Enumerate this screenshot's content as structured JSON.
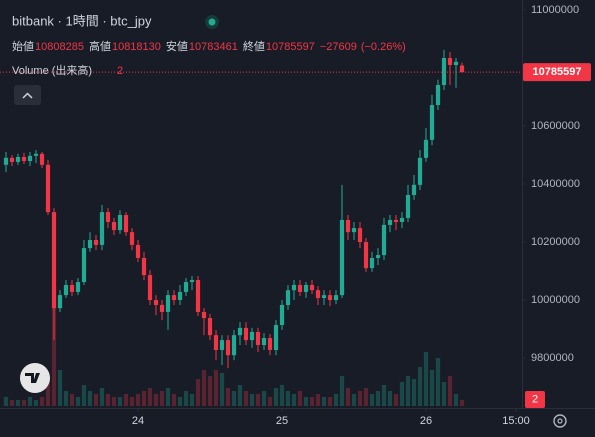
{
  "chart_data": {
    "type": "candlestick",
    "title": "bitbank · 1時間 · btc_jpy",
    "legend": [
      {
        "label": "始値",
        "value": 10808285
      },
      {
        "label": "高値",
        "value": 10818130
      },
      {
        "label": "安値",
        "value": 10783461
      },
      {
        "label": "終値",
        "value": 10785597
      }
    ],
    "change": {
      "value": -27609,
      "label": "−27609"
    },
    "change_pct": {
      "value": -0.26,
      "label": "(−0.26%)"
    },
    "volume_label": "Volume (出来高)",
    "volume_last": 2,
    "up_color": "#22ab94",
    "down_color": "#f23645",
    "open": [
      10466000,
      10490000,
      10476000,
      10493000,
      10479000,
      10497000,
      10504000,
      10466000,
      10303000,
      9972000,
      10017000,
      10052000,
      10028000,
      10062000,
      10179000,
      10207000,
      10190000,
      10303000,
      10269000,
      10241000,
      10293000,
      10234000,
      10190000,
      10145000,
      10086000,
      10000000,
      9983000,
      9959000,
      10017000,
      10000000,
      10028000,
      10062000,
      10069000,
      9959000,
      9938000,
      9879000,
      9828000,
      9862000,
      9810000,
      9879000,
      9904000,
      9862000,
      9890000,
      9845000,
      9869000,
      9828000,
      9914000,
      9983000,
      10034000,
      10052000,
      10028000,
      10052000,
      10034000,
      10007000,
      10017000,
      10000000,
      10017000,
      10276000,
      10234000,
      10248000,
      10200000,
      10110000,
      10145000,
      10155000,
      10259000,
      10276000,
      10269000,
      10283000,
      10362000,
      10397000,
      10490000,
      10552000,
      10672000,
      10741000,
      10834000,
      10810000,
      10808285
    ],
    "high": [
      10510000,
      10500000,
      10504000,
      10507000,
      10510000,
      10517000,
      10510000,
      10483000,
      10317000,
      10034000,
      10069000,
      10069000,
      10076000,
      10207000,
      10234000,
      10224000,
      10328000,
      10317000,
      10283000,
      10310000,
      10303000,
      10248000,
      10207000,
      10166000,
      10103000,
      10017000,
      10000000,
      10034000,
      10034000,
      10052000,
      10076000,
      10083000,
      10083000,
      9972000,
      9952000,
      9897000,
      9879000,
      9879000,
      9897000,
      9924000,
      9924000,
      9904000,
      9904000,
      9886000,
      9883000,
      9931000,
      10000000,
      10052000,
      10069000,
      10069000,
      10062000,
      10069000,
      10048000,
      10034000,
      10034000,
      10034000,
      10397000,
      10293000,
      10269000,
      10269000,
      10214000,
      10166000,
      10179000,
      10283000,
      10293000,
      10293000,
      10303000,
      10397000,
      10431000,
      10517000,
      10593000,
      10707000,
      10759000,
      10862000,
      10855000,
      10834000,
      10818130
    ],
    "low": [
      10441000,
      10462000,
      10466000,
      10469000,
      10462000,
      10472000,
      10455000,
      10293000,
      9862000,
      9959000,
      10007000,
      10014000,
      10017000,
      10052000,
      10166000,
      10172000,
      10172000,
      10248000,
      10224000,
      10228000,
      10221000,
      10172000,
      10131000,
      10069000,
      9983000,
      9948000,
      9931000,
      9897000,
      9983000,
      9983000,
      10014000,
      10034000,
      9945000,
      9879000,
      9862000,
      9793000,
      9776000,
      9766000,
      9793000,
      9845000,
      9845000,
      9835000,
      9821000,
      9828000,
      9810000,
      9810000,
      9897000,
      9966000,
      10000000,
      10014000,
      10007000,
      10021000,
      9983000,
      9983000,
      9979000,
      9986000,
      10007000,
      10207000,
      10207000,
      10179000,
      10097000,
      10097000,
      10121000,
      10138000,
      10234000,
      10241000,
      10248000,
      10269000,
      10345000,
      10379000,
      10476000,
      10534000,
      10655000,
      10724000,
      10741000,
      10731000,
      10783461
    ],
    "close": [
      10490000,
      10476000,
      10493000,
      10479000,
      10497000,
      10504000,
      10466000,
      10303000,
      9972000,
      10017000,
      10052000,
      10028000,
      10062000,
      10179000,
      10207000,
      10190000,
      10303000,
      10269000,
      10241000,
      10293000,
      10234000,
      10190000,
      10145000,
      10086000,
      10000000,
      9983000,
      9959000,
      10017000,
      10000000,
      10028000,
      10062000,
      10069000,
      9959000,
      9938000,
      9879000,
      9828000,
      9862000,
      9810000,
      9879000,
      9904000,
      9862000,
      9890000,
      9845000,
      9869000,
      9828000,
      9914000,
      9983000,
      10034000,
      10052000,
      10028000,
      10052000,
      10034000,
      10007000,
      10017000,
      10000000,
      10017000,
      10276000,
      10234000,
      10248000,
      10200000,
      10110000,
      10145000,
      10155000,
      10259000,
      10276000,
      10269000,
      10283000,
      10362000,
      10397000,
      10490000,
      10552000,
      10672000,
      10741000,
      10834000,
      10810000,
      10821000,
      10785597
    ],
    "volume": [
      3,
      2,
      2,
      2,
      3,
      2,
      3,
      10,
      33,
      12,
      5,
      4,
      3,
      7,
      5,
      4,
      6,
      4,
      3,
      3,
      4,
      3,
      4,
      5,
      6,
      4,
      5,
      6,
      4,
      3,
      5,
      4,
      9,
      12,
      10,
      12,
      11,
      6,
      5,
      7,
      5,
      4,
      4,
      5,
      3,
      6,
      7,
      5,
      4,
      5,
      3,
      3,
      4,
      3,
      3,
      4,
      10,
      6,
      4,
      5,
      6,
      4,
      5,
      7,
      5,
      4,
      8,
      10,
      9,
      13,
      18,
      12,
      16,
      8,
      10,
      4,
      2
    ],
    "volume_ylim": [
      0,
      36
    ],
    "xlim": [
      -1,
      86
    ],
    "xticks": [
      {
        "value": 22,
        "label": "24"
      },
      {
        "value": 46,
        "label": "25"
      },
      {
        "value": 70,
        "label": "26"
      },
      {
        "value": 85,
        "label": "15:00"
      }
    ],
    "ylim": [
      9628000,
      11034000
    ],
    "yticks": [
      11000000,
      10600000,
      10400000,
      10200000,
      10000000,
      9800000
    ],
    "grid": false
  }
}
